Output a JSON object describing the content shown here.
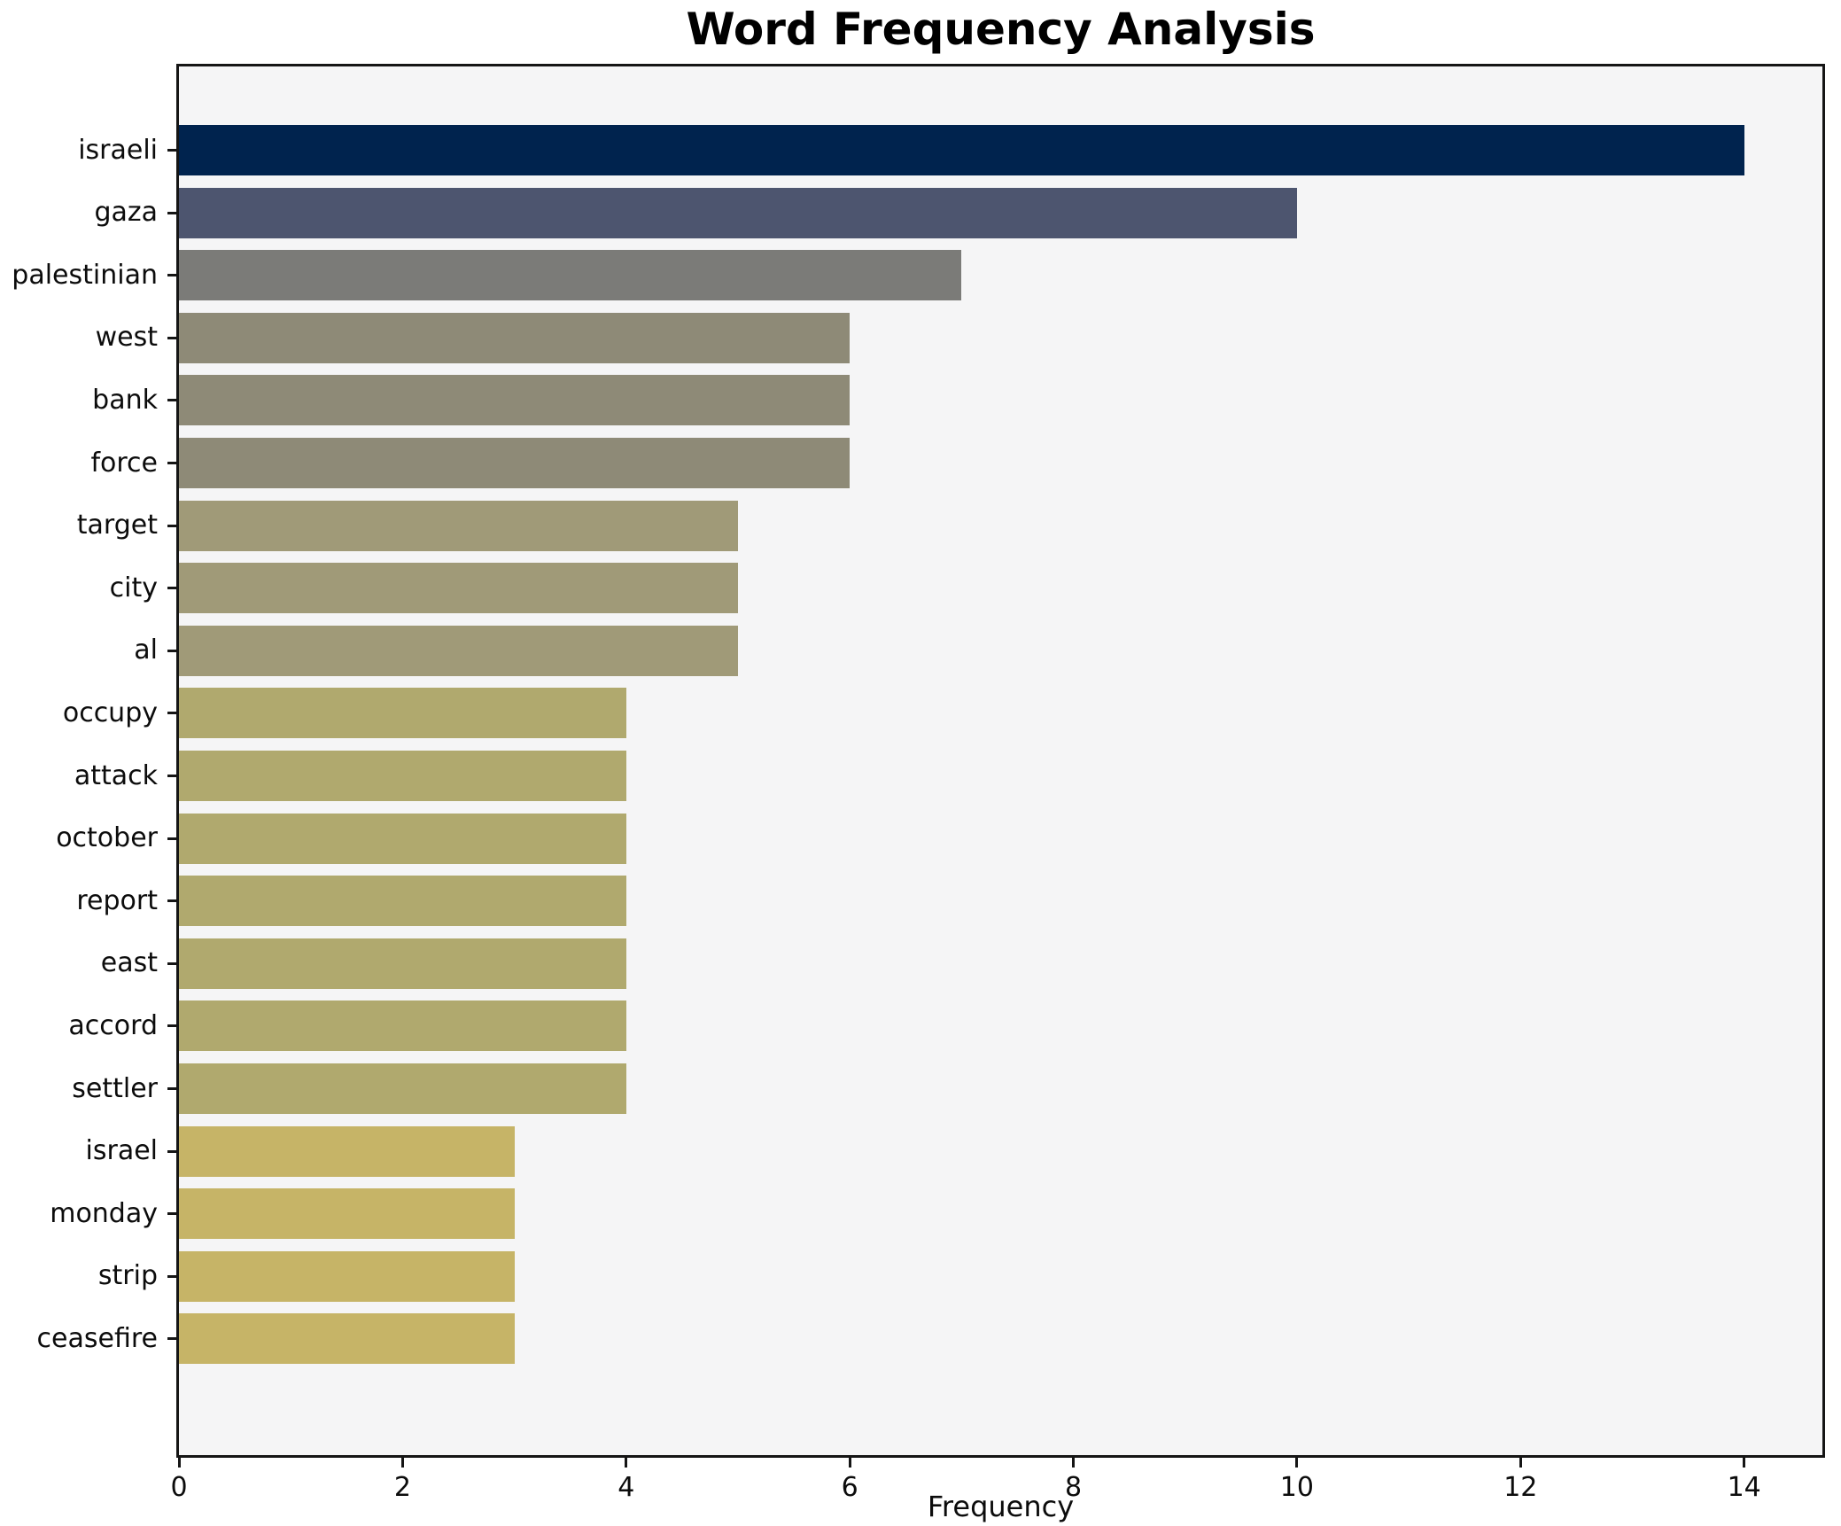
{
  "chart_data": {
    "type": "bar",
    "orientation": "horizontal",
    "title": "Word Frequency Analysis",
    "xlabel": "Frequency",
    "ylabel": "",
    "categories": [
      "israeli",
      "gaza",
      "palestinian",
      "west",
      "bank",
      "force",
      "target",
      "city",
      "al",
      "occupy",
      "attack",
      "october",
      "report",
      "east",
      "accord",
      "settler",
      "israel",
      "monday",
      "strip",
      "ceasefire"
    ],
    "values": [
      14,
      10,
      7,
      6,
      6,
      6,
      5,
      5,
      5,
      4,
      4,
      4,
      4,
      4,
      4,
      4,
      3,
      3,
      3,
      3
    ],
    "bar_colors": [
      "#00234e",
      "#4d556f",
      "#7b7b78",
      "#8e8a77",
      "#8e8a77",
      "#8e8a77",
      "#a09a78",
      "#a09a78",
      "#a09a78",
      "#b0a96e",
      "#b0a96e",
      "#b0a96e",
      "#b0a96e",
      "#b0a96e",
      "#b0a96e",
      "#b0a96e",
      "#c6b467",
      "#c6b467",
      "#c6b467",
      "#c6b467"
    ],
    "xlim": [
      0,
      14.7
    ],
    "xticks": [
      0,
      2,
      4,
      6,
      8,
      10,
      12,
      14
    ],
    "grid": false,
    "legend": "none",
    "plot_background": "#f5f5f6",
    "figure_background": "#ffffff",
    "axis_color": "#151515"
  }
}
